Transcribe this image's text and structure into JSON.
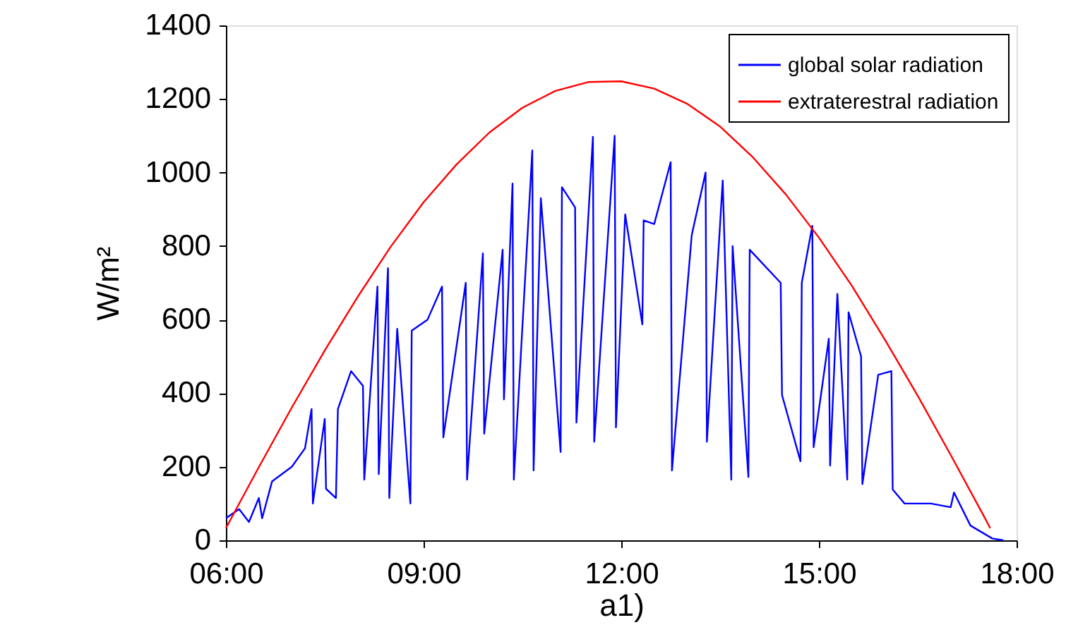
{
  "chart_data": {
    "type": "line",
    "xlabel": "a1)",
    "ylabel": "W/m²",
    "xlim": [
      6,
      18
    ],
    "xticks": [
      {
        "value": 6,
        "label": "06:00"
      },
      {
        "value": 9,
        "label": "09:00"
      },
      {
        "value": 12,
        "label": "12:00"
      },
      {
        "value": 15,
        "label": "15:00"
      },
      {
        "value": 18,
        "label": "18:00"
      }
    ],
    "ylim": [
      0,
      1400
    ],
    "yticks": [
      0,
      200,
      400,
      600,
      800,
      1000,
      1200,
      1400
    ],
    "grid": false,
    "legend": "top right",
    "marker": "none",
    "line_style": "solid",
    "series": [
      {
        "name": "global solar radiation",
        "color": "#0000ff",
        "x": [
          6.0,
          6.2,
          6.35,
          6.5,
          6.55,
          6.7,
          7.0,
          7.2,
          7.3,
          7.32,
          7.5,
          7.52,
          7.67,
          7.7,
          7.9,
          8.08,
          8.1,
          8.3,
          8.32,
          8.46,
          8.48,
          8.6,
          8.8,
          8.82,
          9.06,
          9.28,
          9.3,
          9.64,
          9.66,
          9.9,
          9.92,
          10.2,
          10.22,
          10.35,
          10.37,
          10.65,
          10.67,
          10.78,
          11.08,
          11.1,
          11.3,
          11.32,
          11.57,
          11.59,
          11.9,
          11.92,
          12.06,
          12.32,
          12.34,
          12.5,
          12.75,
          12.77,
          13.07,
          13.28,
          13.3,
          13.54,
          13.67,
          13.69,
          13.93,
          13.95,
          14.08,
          14.42,
          14.44,
          14.72,
          14.74,
          14.9,
          14.92,
          15.15,
          15.17,
          15.28,
          15.43,
          15.45,
          15.64,
          15.66,
          15.9,
          16.1,
          16.12,
          16.3,
          16.7,
          17.0,
          17.05,
          17.3,
          17.63,
          17.8
        ],
        "values": [
          60,
          85,
          50,
          115,
          60,
          160,
          200,
          250,
          357,
          100,
          330,
          140,
          115,
          357,
          460,
          420,
          165,
          690,
          180,
          740,
          115,
          575,
          100,
          570,
          600,
          690,
          280,
          700,
          165,
          780,
          290,
          790,
          383,
          970,
          165,
          1060,
          190,
          930,
          240,
          960,
          905,
          320,
          1097,
          268,
          1100,
          307,
          886,
          587,
          870,
          860,
          1028,
          190,
          830,
          1000,
          268,
          978,
          165,
          800,
          172,
          790,
          765,
          700,
          395,
          215,
          700,
          855,
          253,
          548,
          203,
          670,
          165,
          620,
          500,
          153,
          450,
          460,
          138,
          100,
          100,
          90,
          130,
          40,
          5,
          0
        ]
      },
      {
        "name": "extraterestral radiation",
        "color": "#ff0000",
        "x": [
          6.0,
          6.5,
          7.0,
          7.5,
          8.0,
          8.5,
          9.0,
          9.5,
          10.0,
          10.5,
          11.0,
          11.5,
          12.0,
          12.5,
          13.0,
          13.5,
          14.0,
          14.5,
          15.0,
          15.5,
          16.0,
          16.5,
          17.0,
          17.5,
          17.6
        ],
        "values": [
          33,
          199,
          361,
          516,
          662,
          798,
          919,
          1022,
          1109,
          1176,
          1222,
          1246,
          1248,
          1228,
          1187,
          1125,
          1041,
          940,
          823,
          692,
          546,
          393,
          232,
          67,
          33
        ]
      }
    ]
  }
}
